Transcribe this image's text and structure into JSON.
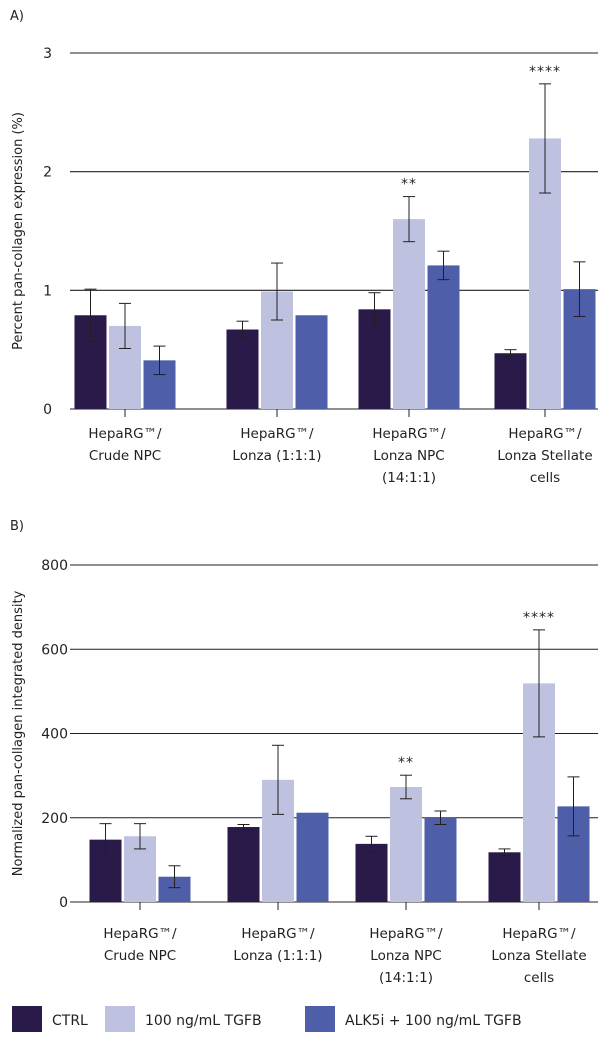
{
  "colors": {
    "ctrl": "#2a1a4a",
    "tgfb": "#bfc1e1",
    "alk5i": "#4f5ea8",
    "text": "#231f20",
    "grid": "#231f20"
  },
  "legend": [
    {
      "key": "ctrl",
      "label": "CTRL"
    },
    {
      "key": "tgfb",
      "label": "100 ng/mL TGFB"
    },
    {
      "key": "alk5i",
      "label": "ALK5i + 100 ng/mL TGFB"
    }
  ],
  "chart_data": [
    {
      "type": "bar",
      "panel": "A)",
      "ylabel": "Percent pan-collagen expression (%)",
      "ylim": [
        0,
        3
      ],
      "yticks": [
        "0",
        "1",
        "2",
        "3"
      ],
      "grid": true,
      "categories": [
        [
          "HepaRG™/",
          "Crude NPC"
        ],
        [
          "HepaRG™/",
          "Lonza (1:1:1)"
        ],
        [
          "HepaRG™/",
          "Lonza NPC",
          "(14:1:1)"
        ],
        [
          "HepaRG™/",
          "Lonza Stellate",
          "cells"
        ]
      ],
      "series": [
        {
          "key": "ctrl",
          "name": "CTRL",
          "values": [
            0.79,
            0.67,
            0.84,
            0.47
          ],
          "err": [
            0.22,
            0.07,
            0.14,
            0.03
          ]
        },
        {
          "key": "tgfb",
          "name": "100 ng/mL TGFB",
          "values": [
            0.7,
            0.99,
            1.6,
            2.28
          ],
          "err": [
            0.19,
            0.24,
            0.19,
            0.46
          ]
        },
        {
          "key": "alk5i",
          "name": "ALK5i + 100 ng/mL TGFB",
          "values": [
            0.41,
            0.79,
            1.21,
            1.01
          ],
          "err": [
            0.12,
            0.0,
            0.12,
            0.23
          ]
        }
      ],
      "significance": [
        {
          "category": 2,
          "series": "tgfb",
          "label": "**"
        },
        {
          "category": 3,
          "series": "tgfb",
          "label": "****"
        }
      ]
    },
    {
      "type": "bar",
      "panel": "B)",
      "ylabel": "Normalized pan-collagen integrated density",
      "ylim": [
        0,
        800
      ],
      "yticks": [
        "0",
        "200",
        "400",
        "600",
        "800"
      ],
      "grid": true,
      "categories": [
        [
          "HepaRG™/",
          "Crude NPC"
        ],
        [
          "HepaRG™/",
          "Lonza (1:1:1)"
        ],
        [
          "HepaRG™/",
          "Lonza NPC",
          "(14:1:1)"
        ],
        [
          "HepaRG™/",
          "Lonza Stellate",
          "cells"
        ]
      ],
      "series": [
        {
          "key": "ctrl",
          "name": "CTRL",
          "values": [
            148,
            178,
            138,
            118
          ],
          "err": [
            38,
            6,
            18,
            8
          ]
        },
        {
          "key": "tgfb",
          "name": "100 ng/mL TGFB",
          "values": [
            156,
            290,
            273,
            519
          ],
          "err": [
            30,
            82,
            28,
            127
          ]
        },
        {
          "key": "alk5i",
          "name": "ALK5i + 100 ng/mL TGFB",
          "values": [
            60,
            212,
            200,
            227
          ],
          "err": [
            26,
            0,
            16,
            70
          ]
        }
      ],
      "significance": [
        {
          "category": 2,
          "series": "tgfb",
          "label": "**"
        },
        {
          "category": 3,
          "series": "tgfb",
          "label": "****"
        }
      ]
    }
  ]
}
